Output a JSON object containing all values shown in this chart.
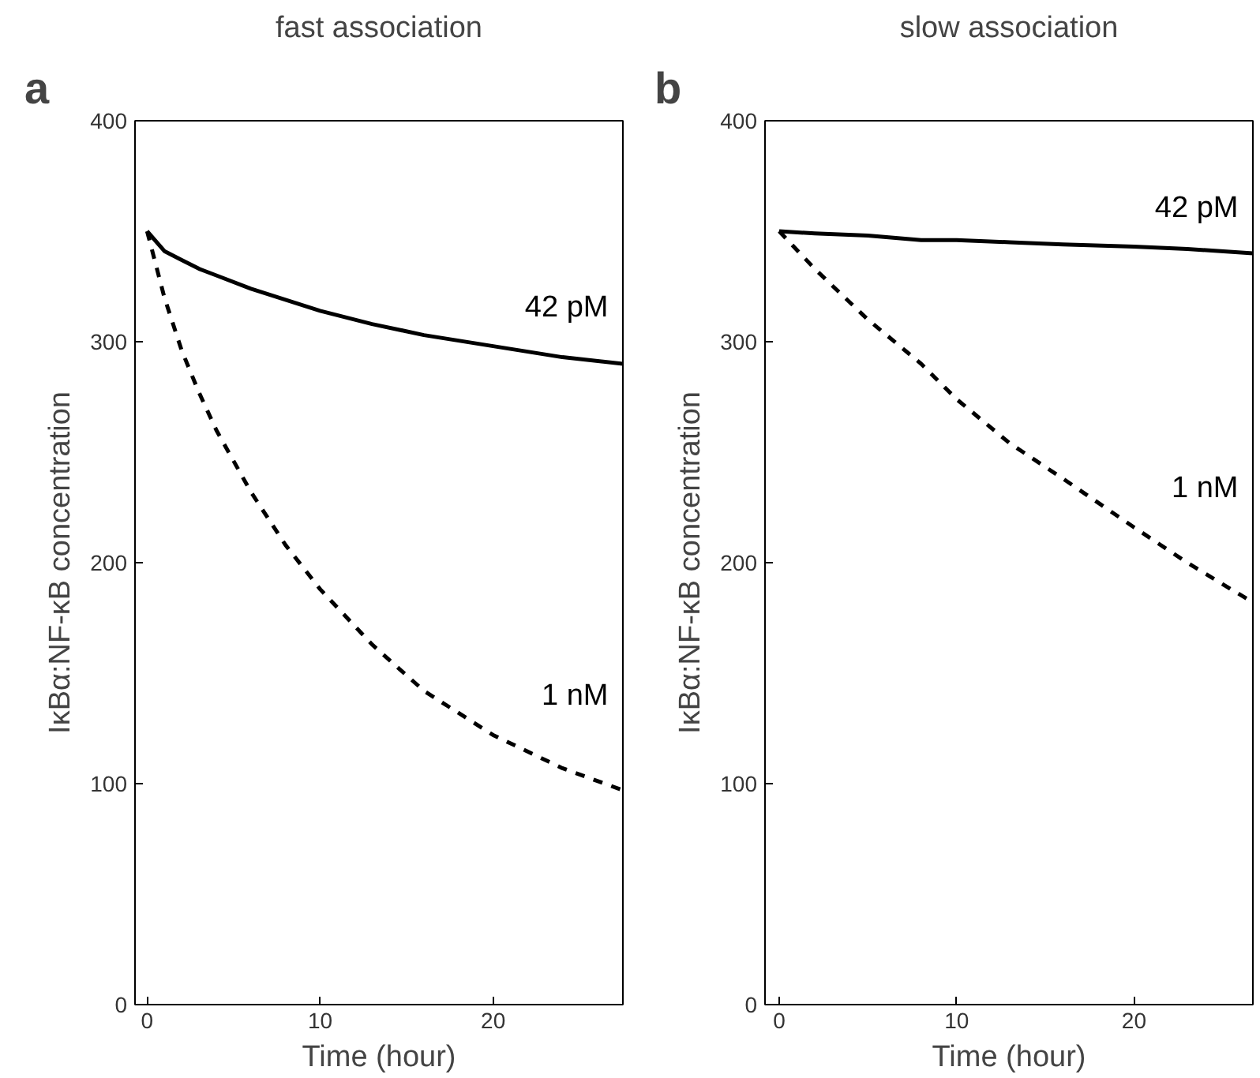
{
  "chart_data": [
    {
      "type": "line",
      "title": "fast association",
      "xlabel": "Time (hour)",
      "ylabel": "IκBα:NF-κB concentration",
      "annotations": [
        "a"
      ],
      "xlim": [
        -0.7,
        27.5
      ],
      "ylim": [
        0,
        400
      ],
      "xticks": [
        0,
        10,
        20
      ],
      "yticks": [
        0,
        100,
        200,
        300,
        400
      ],
      "grid": false,
      "x": [
        0,
        1,
        2,
        3,
        4,
        6,
        8,
        10,
        13,
        16,
        20,
        24,
        27.5
      ],
      "series": [
        {
          "name": "42 pM",
          "color": "#000000",
          "line_style": "solid",
          "values": [
            350,
            341,
            337,
            333,
            330,
            324,
            319,
            314,
            308,
            303,
            298,
            293,
            290
          ]
        },
        {
          "name": "1 nM",
          "color": "#000000",
          "line_style": "dashed",
          "values": [
            350,
            320,
            296,
            277,
            260,
            232,
            208,
            188,
            163,
            142,
            122,
            107,
            97
          ]
        }
      ]
    },
    {
      "type": "line",
      "title": "slow association",
      "xlabel": "Time (hour)",
      "ylabel": "IκBα:NF-κB concentration",
      "annotations": [
        "b"
      ],
      "xlim": [
        -0.8,
        26.7
      ],
      "ylim": [
        0,
        400
      ],
      "xticks": [
        0,
        10,
        20
      ],
      "yticks": [
        0,
        100,
        200,
        300,
        400
      ],
      "grid": false,
      "x": [
        0,
        2,
        5,
        8,
        10,
        13,
        16,
        20,
        23,
        26.7
      ],
      "series": [
        {
          "name": "42 pM",
          "color": "#000000",
          "line_style": "solid",
          "values": [
            350,
            349,
            348,
            346,
            346,
            345,
            344,
            343,
            342,
            340
          ]
        },
        {
          "name": "1 nM",
          "color": "#000000",
          "line_style": "dashed",
          "values": [
            350,
            333,
            310,
            290,
            274,
            254,
            238,
            216,
            200,
            182
          ]
        }
      ]
    }
  ]
}
